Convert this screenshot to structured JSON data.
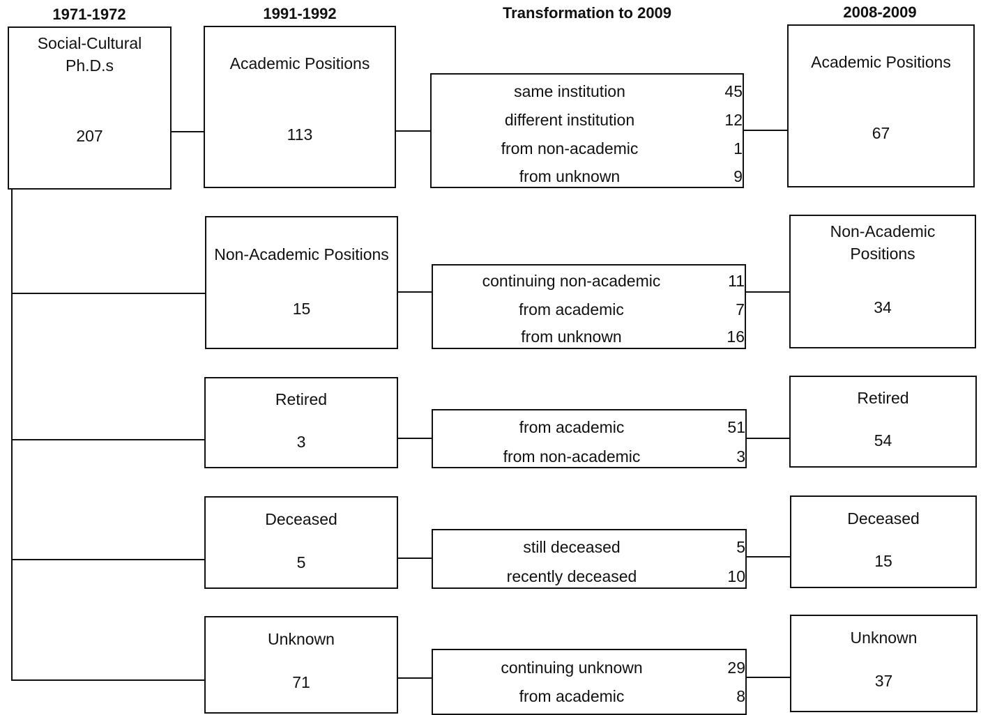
{
  "headers": {
    "col1": "1971-1972",
    "col2": "1991-1992",
    "col3": "Transformation to 2009",
    "col4": "2008-2009"
  },
  "origin": {
    "label_line1": "Social-Cultural",
    "label_line2": "Ph.D.s",
    "count": "207"
  },
  "categories": [
    {
      "from_label": "Academic Positions",
      "from_count": "113",
      "transitions": [
        {
          "label": "same institution",
          "count": "45"
        },
        {
          "label": "different institution",
          "count": "12"
        },
        {
          "label": "from non-academic",
          "count": "1"
        },
        {
          "label": "from unknown",
          "count": "9"
        }
      ],
      "to_label": "Academic Positions",
      "to_count": "67"
    },
    {
      "from_label": "Non-Academic Positions",
      "from_count": "15",
      "transitions": [
        {
          "label": "continuing non-academic",
          "count": "11"
        },
        {
          "label": "from academic",
          "count": "7"
        },
        {
          "label": "from unknown",
          "count": "16"
        }
      ],
      "to_label_line1": "Non-Academic",
      "to_label_line2": "Positions",
      "to_count": "34"
    },
    {
      "from_label": "Retired",
      "from_count": "3",
      "transitions": [
        {
          "label": "from academic",
          "count": "51"
        },
        {
          "label": "from non-academic",
          "count": "3"
        }
      ],
      "to_label": "Retired",
      "to_count": "54"
    },
    {
      "from_label": "Deceased",
      "from_count": "5",
      "transitions": [
        {
          "label": "still deceased",
          "count": "5"
        },
        {
          "label": "recently deceased",
          "count": "10"
        }
      ],
      "to_label": "Deceased",
      "to_count": "15"
    },
    {
      "from_label": "Unknown",
      "from_count": "71",
      "transitions": [
        {
          "label": "continuing unknown",
          "count": "29"
        },
        {
          "label": "from academic",
          "count": "8"
        }
      ],
      "to_label": "Unknown",
      "to_count": "37"
    }
  ]
}
